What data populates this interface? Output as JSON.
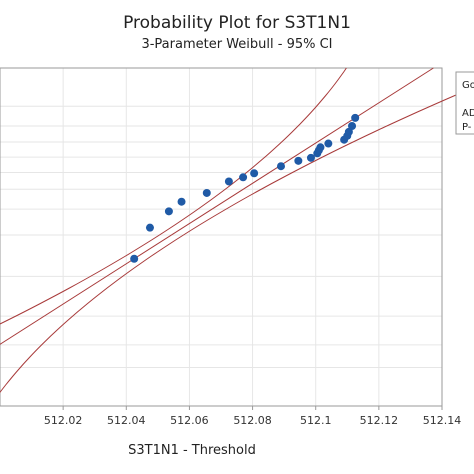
{
  "chart_data": {
    "type": "scatter",
    "title": "Probability Plot for S3T1N1",
    "subtitle": "3-Parameter Weibull - 95% CI",
    "xlabel": "S3T1N1 - Threshold",
    "ylabel": "",
    "x_ticks": [
      "512.02",
      "512.04",
      "512.06",
      "512.08",
      "512.1",
      "512.12",
      "512.14"
    ],
    "x_tick_values": [
      512.02,
      512.04,
      512.06,
      512.08,
      512.1,
      512.12,
      512.14
    ],
    "xlim": [
      512.0,
      512.14
    ],
    "grid": true,
    "points": [
      {
        "x": 512.0425,
        "p": 0.135
      },
      {
        "x": 512.0475,
        "p": 0.225
      },
      {
        "x": 512.0535,
        "p": 0.29
      },
      {
        "x": 512.0575,
        "p": 0.335
      },
      {
        "x": 512.0655,
        "p": 0.38
      },
      {
        "x": 512.0725,
        "p": 0.445
      },
      {
        "x": 512.077,
        "p": 0.47
      },
      {
        "x": 512.0805,
        "p": 0.495
      },
      {
        "x": 512.089,
        "p": 0.54
      },
      {
        "x": 512.0945,
        "p": 0.575
      },
      {
        "x": 512.0985,
        "p": 0.595
      },
      {
        "x": 512.1005,
        "p": 0.625
      },
      {
        "x": 512.101,
        "p": 0.645
      },
      {
        "x": 512.1015,
        "p": 0.665
      },
      {
        "x": 512.104,
        "p": 0.69
      },
      {
        "x": 512.109,
        "p": 0.715
      },
      {
        "x": 512.11,
        "p": 0.74
      },
      {
        "x": 512.1105,
        "p": 0.765
      },
      {
        "x": 512.1115,
        "p": 0.8
      },
      {
        "x": 512.1125,
        "p": 0.845
      }
    ],
    "fit_line_color": "#a83a3a",
    "point_color": "#1f5aa6",
    "legend": {
      "placement": "right",
      "lines": [
        "Go",
        "AD",
        "P-"
      ]
    }
  }
}
